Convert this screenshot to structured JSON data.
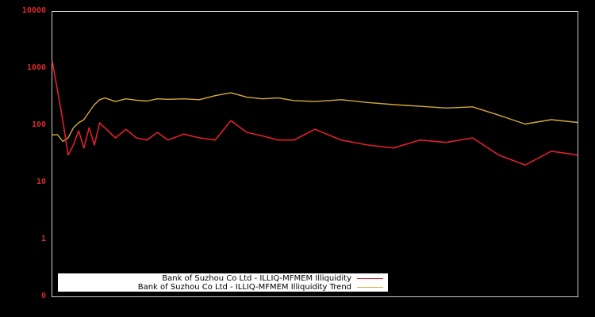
{
  "chart_data": {
    "type": "line",
    "title": "",
    "xlabel": "",
    "ylabel": "",
    "yscale": "log",
    "ylim": [
      0.1,
      10000
    ],
    "y_tick_labels": [
      "10000",
      "1000",
      "100",
      "10",
      "1",
      "0"
    ],
    "y_tick_values": [
      10000,
      1000,
      100,
      10,
      1,
      0.1
    ],
    "grid": false,
    "legend_position": "lower-left",
    "x": [
      0,
      1,
      2,
      3,
      4,
      5,
      6,
      7,
      8,
      9,
      10,
      12,
      14,
      16,
      18,
      20,
      22,
      25,
      28,
      31,
      34,
      37,
      40,
      43,
      46,
      50,
      55,
      60,
      65,
      70,
      75,
      80,
      85,
      90,
      95,
      100
    ],
    "series": [
      {
        "name": "Bank of Suzhou Co Ltd - ILLIQ-MFMEM Illiquidity",
        "color": "#e0202a",
        "values": [
          1300,
          400,
          120,
          30,
          45,
          80,
          40,
          90,
          45,
          110,
          90,
          60,
          85,
          60,
          55,
          75,
          55,
          70,
          60,
          55,
          120,
          75,
          65,
          55,
          55,
          85,
          55,
          45,
          40,
          55,
          50,
          60,
          30,
          20,
          35,
          30
        ]
      },
      {
        "name": "Bank of Suzhou Co Ltd - ILLIQ-MFMEM Illiquidity Trend",
        "color": "#d4aa3a",
        "values": [
          68,
          68,
          52,
          60,
          90,
          110,
          125,
          170,
          230,
          280,
          300,
          260,
          290,
          275,
          265,
          290,
          285,
          290,
          280,
          330,
          370,
          310,
          290,
          300,
          270,
          260,
          280,
          250,
          230,
          215,
          200,
          210,
          150,
          105,
          125,
          112
        ]
      }
    ]
  },
  "legend": {
    "items": [
      {
        "label": "Bank of Suzhou Co Ltd - ILLIQ-MFMEM Illiquidity",
        "color": "#e0202a"
      },
      {
        "label": "Bank of Suzhou Co Ltd - ILLIQ-MFMEM Illiquidity Trend",
        "color": "#d4aa3a"
      }
    ]
  },
  "colors": {
    "background": "#000000",
    "axis": "#cccccc",
    "tick_label": "#d42a2a"
  }
}
